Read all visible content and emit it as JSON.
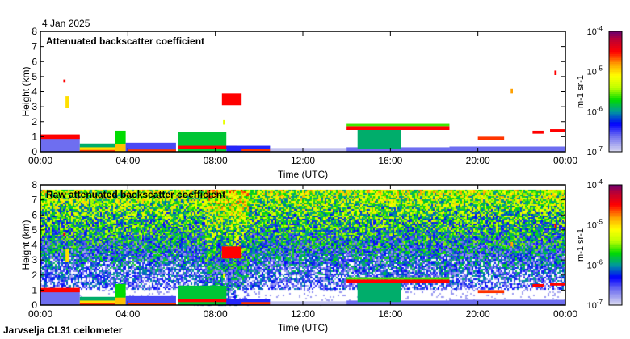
{
  "date_label": "4 Jan 2025",
  "footer": "Jarvselja CL31 ceilometer",
  "colors": {
    "frame": "#000000",
    "background": "#ffffff"
  },
  "chart_data": [
    {
      "type": "heatmap",
      "title": "Attenuated backscatter coefficient",
      "xlabel": "Time (UTC)",
      "ylabel": "Height (km)",
      "xlim": [
        0,
        24
      ],
      "ylim": [
        0,
        8
      ],
      "x_ticks": [
        "00:00",
        "04:00",
        "08:00",
        "12:00",
        "16:00",
        "20:00",
        "00:00"
      ],
      "y_ticks": [
        "0",
        "1",
        "2",
        "3",
        "4",
        "5",
        "6",
        "7",
        "8"
      ],
      "noise": false,
      "colorbar": {
        "label": "m-1 sr-1",
        "scale": "log",
        "range": [
          1e-07,
          0.0001
        ],
        "ticks": [
          "10",
          "10",
          "10",
          "10"
        ],
        "tick_exponents": [
          "-7",
          "-6",
          "-5",
          "-4"
        ]
      },
      "features": [
        {
          "t": [
            0,
            1.8
          ],
          "h": [
            0,
            1.1
          ],
          "log_beta": -6.6
        },
        {
          "t": [
            0,
            1.8
          ],
          "h": [
            0.85,
            1.15
          ],
          "log_beta": -4.5
        },
        {
          "t": [
            1.8,
            3.4
          ],
          "h": [
            0,
            0.55
          ],
          "log_beta": -5.9
        },
        {
          "t": [
            1.8,
            3.4
          ],
          "h": [
            0,
            0.3
          ],
          "log_beta": -5.0
        },
        {
          "t": [
            1.8,
            3.4
          ],
          "h": [
            0,
            0.12
          ],
          "log_beta": -4.6
        },
        {
          "t": [
            3.4,
            3.9
          ],
          "h": [
            0,
            1.4
          ],
          "log_beta": -5.7
        },
        {
          "t": [
            3.4,
            3.9
          ],
          "h": [
            0,
            0.5
          ],
          "log_beta": -4.9
        },
        {
          "t": [
            3.9,
            6.2
          ],
          "h": [
            0,
            0.6
          ],
          "log_beta": -6.5
        },
        {
          "t": [
            4.0,
            6.2
          ],
          "h": [
            0,
            0.15
          ],
          "log_beta": -4.6
        },
        {
          "t": [
            6.3,
            8.5
          ],
          "h": [
            0,
            1.3
          ],
          "log_beta": -5.8
        },
        {
          "t": [
            6.3,
            9.0
          ],
          "h": [
            0.2,
            0.4
          ],
          "log_beta": -4.5
        },
        {
          "t": [
            8.5,
            10.5
          ],
          "h": [
            0,
            0.4
          ],
          "log_beta": -6.4
        },
        {
          "t": [
            9.2,
            10.5
          ],
          "h": [
            0.05,
            0.2
          ],
          "log_beta": -4.6
        },
        {
          "t": [
            10.5,
            14
          ],
          "h": [
            0,
            0.25
          ],
          "log_beta": -6.9
        },
        {
          "t": [
            14,
            18.7
          ],
          "h": [
            0,
            0.3
          ],
          "log_beta": -6.6
        },
        {
          "t": [
            14.5,
            16.5
          ],
          "h": [
            0.2,
            1.5
          ],
          "log_beta": -5.9
        },
        {
          "t": [
            14,
            18.7
          ],
          "h": [
            1.45,
            1.7
          ],
          "log_beta": -4.5
        },
        {
          "t": [
            14,
            18.7
          ],
          "h": [
            1.7,
            1.85
          ],
          "log_beta": -5.6
        },
        {
          "t": [
            18.7,
            24
          ],
          "h": [
            0,
            0.35
          ],
          "log_beta": -6.6
        },
        {
          "t": [
            20,
            21.2
          ],
          "h": [
            0.8,
            1.0
          ],
          "log_beta": -4.6
        },
        {
          "t": [
            22.5,
            23.0
          ],
          "h": [
            1.2,
            1.4
          ],
          "log_beta": -4.5
        },
        {
          "t": [
            23.3,
            24
          ],
          "h": [
            1.3,
            1.5
          ],
          "log_beta": -4.5
        },
        {
          "t": [
            1.15,
            1.3
          ],
          "h": [
            2.9,
            3.7
          ],
          "log_beta": -5.0
        },
        {
          "t": [
            1.05,
            1.15
          ],
          "h": [
            4.6,
            4.8
          ],
          "log_beta": -4.5
        },
        {
          "t": [
            8.3,
            9.2
          ],
          "h": [
            3.1,
            3.9
          ],
          "log_beta": -4.5
        },
        {
          "t": [
            8.35,
            8.45
          ],
          "h": [
            1.8,
            2.1
          ],
          "log_beta": -5.2
        },
        {
          "t": [
            21.5,
            21.6
          ],
          "h": [
            3.9,
            4.2
          ],
          "log_beta": -4.8
        },
        {
          "t": [
            23.5,
            23.6
          ],
          "h": [
            5.1,
            5.4
          ],
          "log_beta": -4.5
        }
      ]
    },
    {
      "type": "heatmap",
      "title": "Raw attenuated backscatter coefficient",
      "xlabel": "Time (UTC)",
      "ylabel": "Height (km)",
      "xlim": [
        0,
        24
      ],
      "ylim": [
        0,
        8
      ],
      "x_ticks": [
        "00:00",
        "04:00",
        "08:00",
        "12:00",
        "16:00",
        "20:00",
        "00:00"
      ],
      "y_ticks": [
        "0",
        "1",
        "2",
        "3",
        "4",
        "5",
        "6",
        "7",
        "8"
      ],
      "noise": true,
      "colorbar": {
        "label": "m-1 sr-1",
        "scale": "log",
        "range": [
          1e-07,
          0.0001
        ],
        "ticks": [
          "10",
          "10",
          "10",
          "10"
        ],
        "tick_exponents": [
          "-7",
          "-6",
          "-5",
          "-4"
        ]
      },
      "features_same_as_panel": 0
    }
  ]
}
